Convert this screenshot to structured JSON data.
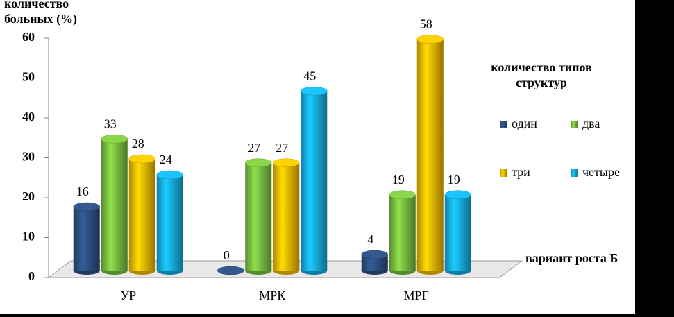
{
  "chart_data": {
    "type": "bar",
    "y_label": "количество больных (%)",
    "x_label": "вариант роста Б",
    "legend_title": "количество типов структур",
    "categories": [
      "УР",
      "МРК",
      "МРГ"
    ],
    "series": [
      {
        "name": "один",
        "color": "#2f5185",
        "values": [
          16,
          0,
          4
        ]
      },
      {
        "name": "два",
        "color": "#7dc443",
        "values": [
          33,
          27,
          19
        ]
      },
      {
        "name": "три",
        "color": "#ffc000",
        "values": [
          28,
          27,
          58
        ]
      },
      {
        "name": "четыре",
        "color": "#18b2ec",
        "values": [
          24,
          45,
          19
        ]
      }
    ],
    "ylim": [
      0,
      60
    ],
    "yticks": [
      0,
      10,
      20,
      30,
      40,
      50,
      60
    ],
    "grid": false
  }
}
